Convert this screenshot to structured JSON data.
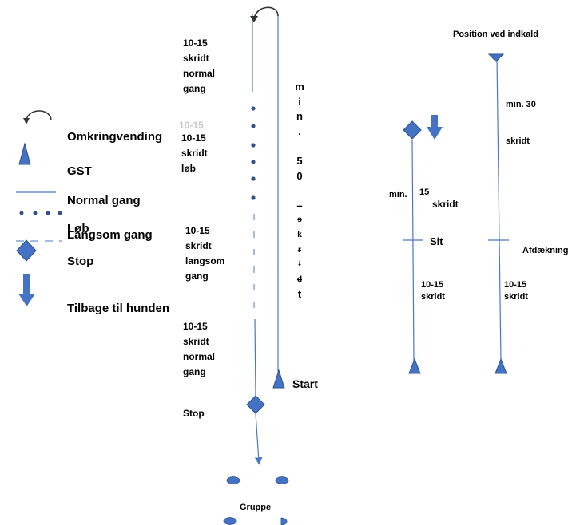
{
  "legend": {
    "items": [
      {
        "icon": "u-turn-arrow-icon",
        "label": "Omkringvending"
      },
      {
        "icon": "triangle-icon",
        "label": "GST"
      },
      {
        "icon": "solid-line-icon",
        "label": "Normal gang"
      },
      {
        "icon": "dotted-line-icon",
        "label": "Løb"
      },
      {
        "icon": "dashed-line-icon",
        "label": "Langsom gang"
      },
      {
        "icon": "diamond-icon",
        "label": "Stop"
      },
      {
        "icon": "down-arrow-icon",
        "label": "Tilbage til hunden"
      }
    ]
  },
  "course": {
    "normal_top": [
      "10-15",
      "skridt",
      "normal",
      "gang"
    ],
    "run": [
      "10-15",
      "skridt",
      "løb"
    ],
    "run_overlap": "10-15",
    "slow": [
      "10-15",
      "skridt",
      "langsom",
      "gang"
    ],
    "normal_bottom": [
      "10-15",
      "skridt",
      "normal",
      "gang"
    ],
    "vertical_letters": [
      "m",
      "i",
      "n",
      ".",
      "",
      "5",
      "0",
      "",
      "–",
      "s",
      "k",
      "r",
      "i",
      "d",
      "t"
    ],
    "start_label": "Start",
    "stop_label": "Stop",
    "group_label": "Gruppe"
  },
  "positions": {
    "title": "Position ved indkald",
    "sit": {
      "min_label": "min.",
      "min_value": "15",
      "min_unit": "skridt",
      "marker": "Sit",
      "after_value": "10-15",
      "after_unit": "skridt"
    },
    "down": {
      "min_value": "min. 30",
      "min_unit": "skridt",
      "marker": "Afdækning",
      "after_value": "10-15",
      "after_unit": "skridt"
    }
  },
  "colors": {
    "line": "#4a78c0",
    "shape": "#4472c4",
    "shape_stroke": "#2f528f",
    "text": "#000000"
  }
}
